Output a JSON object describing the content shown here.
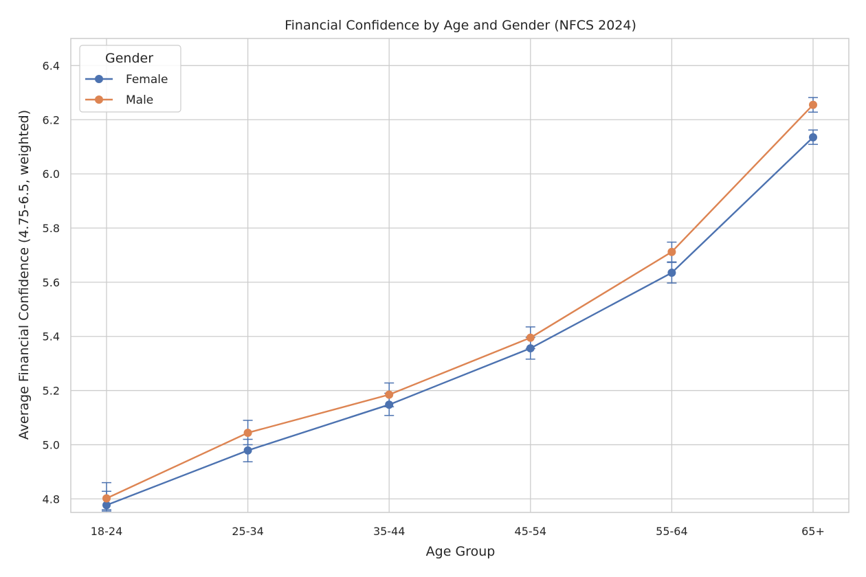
{
  "chart_data": {
    "type": "line",
    "title": "Financial Confidence by Age and Gender (NFCS 2024)",
    "xlabel": "Age Group",
    "ylabel": "Average Financial Confidence (4.75-6.5, weighted)",
    "ylim": [
      4.75,
      6.5
    ],
    "yticks": [
      "4.8",
      "5.0",
      "5.2",
      "5.4",
      "5.6",
      "5.8",
      "6.0",
      "6.2",
      "6.4"
    ],
    "categories": [
      "18-24",
      "25-34",
      "35-44",
      "45-54",
      "55-64",
      "65+"
    ],
    "grid": true,
    "legend": {
      "title": "Gender",
      "placement": "top-left"
    },
    "series": [
      {
        "name": "Female",
        "color": "#4c72b0",
        "values": [
          4.777,
          4.979,
          5.148,
          5.356,
          5.635,
          6.135
        ],
        "err_low": [
          4.755,
          4.937,
          5.108,
          5.316,
          5.597,
          6.109
        ],
        "err_high": [
          4.828,
          5.02,
          5.19,
          5.396,
          5.673,
          6.162
        ]
      },
      {
        "name": "Male",
        "color": "#dd8452",
        "values": [
          4.802,
          5.044,
          5.185,
          5.395,
          5.712,
          6.255
        ],
        "err_low": [
          4.76,
          5.0,
          5.14,
          5.355,
          5.675,
          6.228
        ],
        "err_high": [
          4.86,
          5.09,
          5.228,
          5.435,
          5.748,
          6.282
        ]
      }
    ]
  }
}
